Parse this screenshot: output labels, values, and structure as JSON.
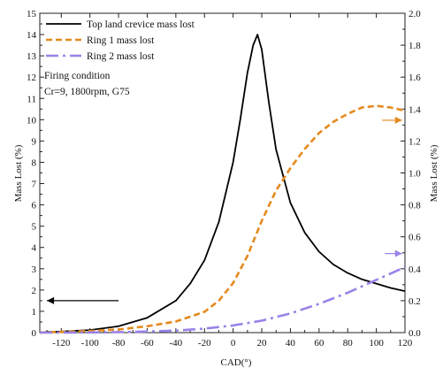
{
  "chart_data": {
    "type": "line",
    "title": "",
    "xlabel": "CAD(°)",
    "ylabel_left": "Mass Lost (%)",
    "ylabel_right": "Mass Lost (%)",
    "xlim": [
      -135,
      120
    ],
    "ylim_left": [
      0,
      15
    ],
    "ylim_right": [
      0,
      2.0
    ],
    "x_ticks": [
      -120,
      -100,
      -80,
      -60,
      -40,
      -20,
      0,
      20,
      40,
      60,
      80,
      100,
      120
    ],
    "y_ticks_left": [
      0,
      1,
      2,
      3,
      4,
      5,
      6,
      7,
      8,
      9,
      10,
      11,
      12,
      13,
      14,
      15
    ],
    "y_ticks_right": [
      "0.0",
      "0.2",
      "0.4",
      "0.6",
      "0.8",
      "1.0",
      "1.2",
      "1.4",
      "1.6",
      "1.8",
      "2.0"
    ],
    "grid": false,
    "legend_position": "top-left",
    "annotations": [
      "Firing condition",
      "Cr=9, 1800rpm, G75"
    ],
    "series": [
      {
        "name": "Top land crevice mass lost",
        "axis": "left",
        "color": "#000000",
        "style": "solid",
        "x": [
          -135,
          -120,
          -100,
          -80,
          -60,
          -40,
          -30,
          -20,
          -10,
          0,
          5,
          10,
          14,
          17,
          20,
          25,
          30,
          40,
          50,
          60,
          70,
          80,
          90,
          100,
          110,
          120
        ],
        "y": [
          0.02,
          0.05,
          0.12,
          0.3,
          0.7,
          1.5,
          2.3,
          3.4,
          5.2,
          8.0,
          10.0,
          12.2,
          13.5,
          14.0,
          13.3,
          10.8,
          8.6,
          6.1,
          4.7,
          3.8,
          3.2,
          2.8,
          2.5,
          2.3,
          2.1,
          1.95
        ]
      },
      {
        "name": "Ring 1 mass lost",
        "axis": "right",
        "color": "#e58a1f",
        "style": "dashed",
        "x": [
          -135,
          -120,
          -100,
          -80,
          -60,
          -40,
          -20,
          -10,
          0,
          10,
          20,
          30,
          40,
          50,
          60,
          70,
          80,
          90,
          100,
          110,
          120
        ],
        "y": [
          0.0,
          0.005,
          0.01,
          0.02,
          0.04,
          0.07,
          0.13,
          0.2,
          0.31,
          0.48,
          0.7,
          0.89,
          1.03,
          1.15,
          1.25,
          1.32,
          1.37,
          1.41,
          1.42,
          1.41,
          1.39
        ]
      },
      {
        "name": "Ring 2 mass lost",
        "axis": "right",
        "color": "#9a82e8",
        "style": "dashdot",
        "x": [
          -135,
          -120,
          -100,
          -80,
          -60,
          -40,
          -20,
          0,
          20,
          40,
          60,
          80,
          100,
          120
        ],
        "y": [
          0.0,
          0.0,
          0.001,
          0.003,
          0.007,
          0.013,
          0.025,
          0.045,
          0.075,
          0.12,
          0.18,
          0.25,
          0.33,
          0.41
        ]
      }
    ]
  }
}
